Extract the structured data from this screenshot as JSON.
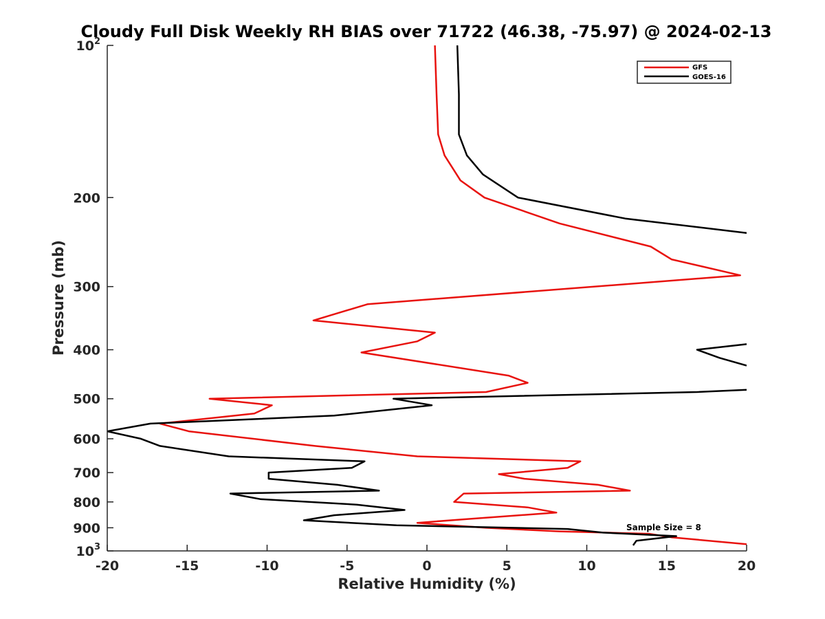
{
  "chart_data": {
    "type": "line",
    "title": "Cloudy Full Disk Weekly RH BIAS over 71722 (46.38, -75.97) @ 2024-02-13",
    "xlabel": "Relative Humidity (%)",
    "ylabel": "Pressure (mb)",
    "xlim": [
      -20,
      20
    ],
    "ylim": [
      100,
      1000
    ],
    "yscale": "log",
    "y_reversed": true,
    "grid": false,
    "legend_position": "top-right",
    "x_ticks": [
      -20,
      -15,
      -10,
      -5,
      0,
      5,
      10,
      15,
      20
    ],
    "x_tick_labels": [
      "-20",
      "-15",
      "-10",
      "-5",
      "0",
      "5",
      "10",
      "15",
      "20"
    ],
    "y_ticks": [
      {
        "value": 100,
        "base": "10",
        "exp": "2",
        "label": ""
      },
      {
        "value": 200,
        "base": "",
        "exp": "",
        "label": "200"
      },
      {
        "value": 300,
        "base": "",
        "exp": "",
        "label": "300"
      },
      {
        "value": 400,
        "base": "",
        "exp": "",
        "label": "400"
      },
      {
        "value": 500,
        "base": "",
        "exp": "",
        "label": "500"
      },
      {
        "value": 600,
        "base": "",
        "exp": "",
        "label": "600"
      },
      {
        "value": 700,
        "base": "",
        "exp": "",
        "label": "700"
      },
      {
        "value": 800,
        "base": "",
        "exp": "",
        "label": "800"
      },
      {
        "value": 900,
        "base": "",
        "exp": "",
        "label": "900"
      },
      {
        "value": 1000,
        "base": "10",
        "exp": "3",
        "label": ""
      }
    ],
    "annotation": "Sample Size = 8",
    "series": [
      {
        "name": "GFS",
        "color": "#e8120e",
        "points": [
          [
            0.5,
            100
          ],
          [
            0.6,
            125
          ],
          [
            0.7,
            150
          ],
          [
            1.1,
            165
          ],
          [
            2.1,
            185
          ],
          [
            3.6,
            200
          ],
          [
            8.3,
            225
          ],
          [
            14.0,
            250
          ],
          [
            15.3,
            265
          ],
          [
            19.6,
            285
          ],
          [
            -3.7,
            325
          ],
          [
            -7.1,
            350
          ],
          [
            0.5,
            370
          ],
          [
            -0.6,
            385
          ],
          [
            -4.1,
            405
          ],
          [
            5.1,
            450
          ],
          [
            6.3,
            465
          ],
          [
            3.7,
            485
          ],
          [
            -13.6,
            500
          ],
          [
            -9.7,
            515
          ],
          [
            -10.8,
            535
          ],
          [
            -16.7,
            560
          ],
          [
            -14.9,
            580
          ],
          [
            -7.0,
            620
          ],
          [
            -0.6,
            650
          ],
          [
            9.6,
            665
          ],
          [
            8.8,
            685
          ],
          [
            4.5,
            705
          ],
          [
            6.1,
            720
          ],
          [
            10.7,
            740
          ],
          [
            12.7,
            760
          ],
          [
            2.3,
            770
          ],
          [
            1.7,
            800
          ],
          [
            6.3,
            820
          ],
          [
            8.1,
            840
          ],
          [
            2.5,
            865
          ],
          [
            -0.6,
            880
          ],
          [
            3.7,
            900
          ],
          [
            8.3,
            915
          ],
          [
            13.9,
            925
          ],
          [
            15.3,
            940
          ],
          [
            20.0,
            970
          ]
        ]
      },
      {
        "name": "GOES-16",
        "color": "#000000",
        "points": [
          [
            1.9,
            100
          ],
          [
            2.0,
            125
          ],
          [
            2.0,
            150
          ],
          [
            2.5,
            165
          ],
          [
            3.5,
            180
          ],
          [
            5.7,
            200
          ],
          [
            12.4,
            220
          ],
          [
            20.0,
            235
          ],
          null,
          [
            20.0,
            390
          ],
          [
            16.9,
            400
          ],
          [
            18.3,
            415
          ],
          [
            20.0,
            430
          ],
          null,
          [
            20.0,
            480
          ],
          [
            16.9,
            485
          ],
          [
            -2.1,
            500
          ],
          [
            0.3,
            515
          ],
          [
            -5.8,
            540
          ],
          [
            -17.3,
            560
          ],
          [
            -20.0,
            580
          ],
          [
            -17.9,
            600
          ],
          [
            -16.7,
            620
          ],
          [
            -12.4,
            650
          ],
          [
            -3.9,
            665
          ],
          [
            -4.7,
            685
          ],
          [
            -9.9,
            700
          ],
          [
            -9.9,
            720
          ],
          [
            -5.6,
            740
          ],
          [
            -3.0,
            760
          ],
          [
            -12.3,
            770
          ],
          [
            -10.4,
            790
          ],
          [
            -4.4,
            810
          ],
          [
            -1.4,
            830
          ],
          [
            -5.8,
            850
          ],
          [
            -7.7,
            870
          ],
          [
            -1.9,
            890
          ],
          [
            8.8,
            905
          ],
          [
            11.0,
            920
          ],
          [
            15.6,
            935
          ],
          [
            13.1,
            955
          ],
          [
            12.9,
            975
          ]
        ]
      }
    ]
  }
}
